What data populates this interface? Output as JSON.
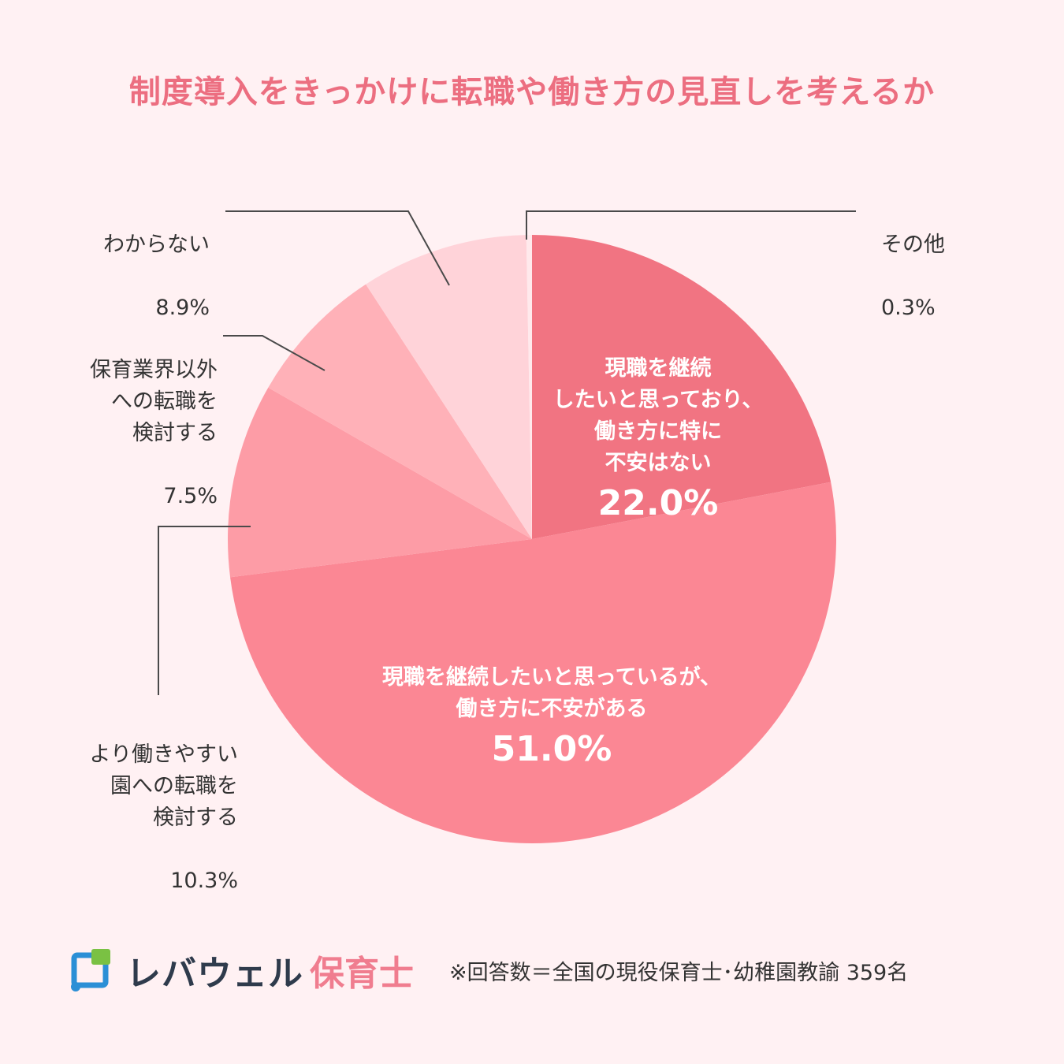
{
  "title": "制度導入をきっかけに転職や働き方の見直しを考えるか",
  "chart_data": {
    "type": "pie",
    "title": "制度導入をきっかけに転職や働き方の見直しを考えるか",
    "slices": [
      {
        "label": "現職を継続したいと思っており、働き方に特に不安はない",
        "display_label": "現職を継続\nしたいと思っており、\n働き方に特に\n不安はない",
        "value": 22.0,
        "value_text": "22.0%",
        "color": "#f17482",
        "label_position": "inside"
      },
      {
        "label": "現職を継続したいと思っているが、働き方に不安がある",
        "display_label": "現職を継続したいと思っているが、\n働き方に不安がある",
        "value": 51.0,
        "value_text": "51.0%",
        "color": "#fb8794",
        "label_position": "inside"
      },
      {
        "label": "より働きやすい園への転職を検討する",
        "display_label": "より働きやすい\n園への転職を\n検討する",
        "value": 10.3,
        "value_text": "10.3%",
        "color": "#fd9ca6",
        "label_position": "outside"
      },
      {
        "label": "保育業界以外への転職を検討する",
        "display_label": "保育業界以外\nへの転職を\n検討する",
        "value": 7.5,
        "value_text": "7.5%",
        "color": "#ffb1b8",
        "label_position": "outside"
      },
      {
        "label": "わからない",
        "display_label": "わからない",
        "value": 8.9,
        "value_text": "8.9%",
        "color": "#ffd3d9",
        "label_position": "outside"
      },
      {
        "label": "その他",
        "display_label": "その他",
        "value": 0.3,
        "value_text": "0.3%",
        "color": "#ffe9ec",
        "label_position": "outside"
      }
    ],
    "start": "12 o'clock",
    "direction": "clockwise",
    "legend": "none"
  },
  "footer": {
    "brand": "レバウェル",
    "brand_sub": "保育士",
    "note": "※回答数＝全国の現役保育士･幼稚園教諭 359名",
    "brand_colors": {
      "green": "#7ac143",
      "blue": "#2b8fd6",
      "navy": "#2f3b4c",
      "pink": "#f07d8f"
    }
  }
}
